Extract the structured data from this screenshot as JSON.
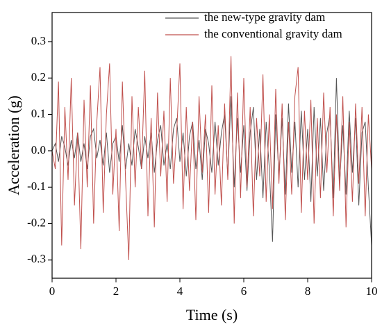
{
  "chart_data": {
    "type": "line",
    "xlabel": "Time (s)",
    "ylabel": "Acceleration (g)",
    "x": [
      0,
      0.1,
      0.2,
      0.3,
      0.4,
      0.5,
      0.6,
      0.7,
      0.8,
      0.9,
      1,
      1.1,
      1.2,
      1.3,
      1.4,
      1.5,
      1.6,
      1.7,
      1.8,
      1.9,
      2,
      2.1,
      2.2,
      2.3,
      2.4,
      2.5,
      2.6,
      2.7,
      2.8,
      2.9,
      3,
      3.1,
      3.2,
      3.3,
      3.4,
      3.5,
      3.6,
      3.7,
      3.8,
      3.9,
      4,
      4.1,
      4.2,
      4.3,
      4.4,
      4.5,
      4.6,
      4.7,
      4.8,
      4.9,
      5,
      5.1,
      5.2,
      5.3,
      5.4,
      5.5,
      5.6,
      5.7,
      5.8,
      5.9,
      6,
      6.1,
      6.2,
      6.3,
      6.4,
      6.5,
      6.6,
      6.7,
      6.8,
      6.9,
      7,
      7.1,
      7.2,
      7.3,
      7.4,
      7.5,
      7.6,
      7.7,
      7.8,
      7.9,
      8,
      8.1,
      8.2,
      8.3,
      8.4,
      8.5,
      8.6,
      8.7,
      8.8,
      8.9,
      9,
      9.1,
      9.2,
      9.3,
      9.4,
      9.5,
      9.6,
      9.7,
      9.8,
      9.9,
      10
    ],
    "series": [
      {
        "name": "the new-type gravity dam",
        "color": "#555555",
        "values": [
          0,
          0.02,
          -0.03,
          0.04,
          0.01,
          -0.04,
          0.03,
          -0.02,
          0.05,
          -0.03,
          0.02,
          -0.05,
          0.04,
          0.06,
          -0.02,
          0.03,
          -0.04,
          0.05,
          -0.06,
          0.02,
          0.04,
          -0.03,
          0.07,
          -0.05,
          0.02,
          -0.04,
          0.06,
          0.01,
          -0.05,
          0.04,
          -0.02,
          0.05,
          -0.06,
          0.03,
          0.07,
          -0.04,
          0.02,
          -0.05,
          0.06,
          0.09,
          -0.03,
          0.05,
          -0.07,
          0.04,
          0.08,
          -0.05,
          0.03,
          -0.08,
          0.06,
          0.02,
          -0.06,
          0.08,
          -0.04,
          0.05,
          0.1,
          -0.07,
          0.15,
          -0.1,
          0.09,
          -0.06,
          0.07,
          -0.11,
          0.05,
          0.12,
          -0.08,
          0.06,
          -0.13,
          0.08,
          -0.05,
          -0.25,
          0.1,
          -0.07,
          0.09,
          -0.12,
          0.13,
          -0.06,
          0.08,
          -0.1,
          0.11,
          -0.08,
          0.06,
          -0.14,
          0.12,
          -0.07,
          0.09,
          -0.11,
          0.05,
          0.1,
          -0.13,
          0.2,
          -0.09,
          0.07,
          -0.12,
          0.11,
          -0.06,
          0.09,
          -0.15,
          0.05,
          0.08,
          -0.1,
          -0.26
        ]
      },
      {
        "name": "the conventional gravity dam",
        "color": "#c0504d",
        "values": [
          0,
          -0.05,
          0.19,
          -0.26,
          0.12,
          -0.08,
          0.2,
          -0.15,
          0.05,
          -0.27,
          0.14,
          -0.1,
          0.18,
          -0.2,
          0.08,
          0.23,
          -0.17,
          0.1,
          0.24,
          -0.12,
          0.06,
          -0.22,
          0.19,
          -0.08,
          -0.3,
          0.15,
          -0.1,
          0.12,
          -0.05,
          0.22,
          -0.18,
          0.09,
          -0.21,
          0.16,
          -0.07,
          0.11,
          -0.14,
          0.2,
          -0.09,
          0.05,
          0.24,
          -0.16,
          0.12,
          -0.11,
          0.08,
          -0.19,
          0.15,
          -0.06,
          0.1,
          -0.17,
          0.18,
          -0.12,
          0.07,
          -0.15,
          0.13,
          -0.08,
          0.26,
          -0.2,
          0.16,
          -0.13,
          0.2,
          -0.1,
          0.12,
          -0.18,
          0.09,
          -0.07,
          0.21,
          -0.14,
          0.1,
          -0.16,
          0.17,
          -0.09,
          0.13,
          -0.19,
          0.08,
          -0.12,
          0.15,
          0.23,
          -0.17,
          0.11,
          -0.08,
          0.14,
          -0.2,
          0.09,
          -0.13,
          0.16,
          -0.06,
          0.12,
          -0.18,
          0.1,
          -0.11,
          0.15,
          -0.21,
          0.08,
          -0.14,
          0.13,
          -0.09,
          0.12,
          -0.18,
          0.1,
          -0.05
        ]
      }
    ],
    "xlim": [
      0,
      10
    ],
    "xticks": [
      0,
      2,
      4,
      6,
      8,
      10
    ],
    "ylim": [
      -0.35,
      0.38
    ],
    "yticks": [
      -0.3,
      -0.2,
      -0.1,
      {
        "value": 0,
        "label": "0.0"
      },
      0.1,
      0.2,
      0.3
    ],
    "legend": "upper right"
  }
}
